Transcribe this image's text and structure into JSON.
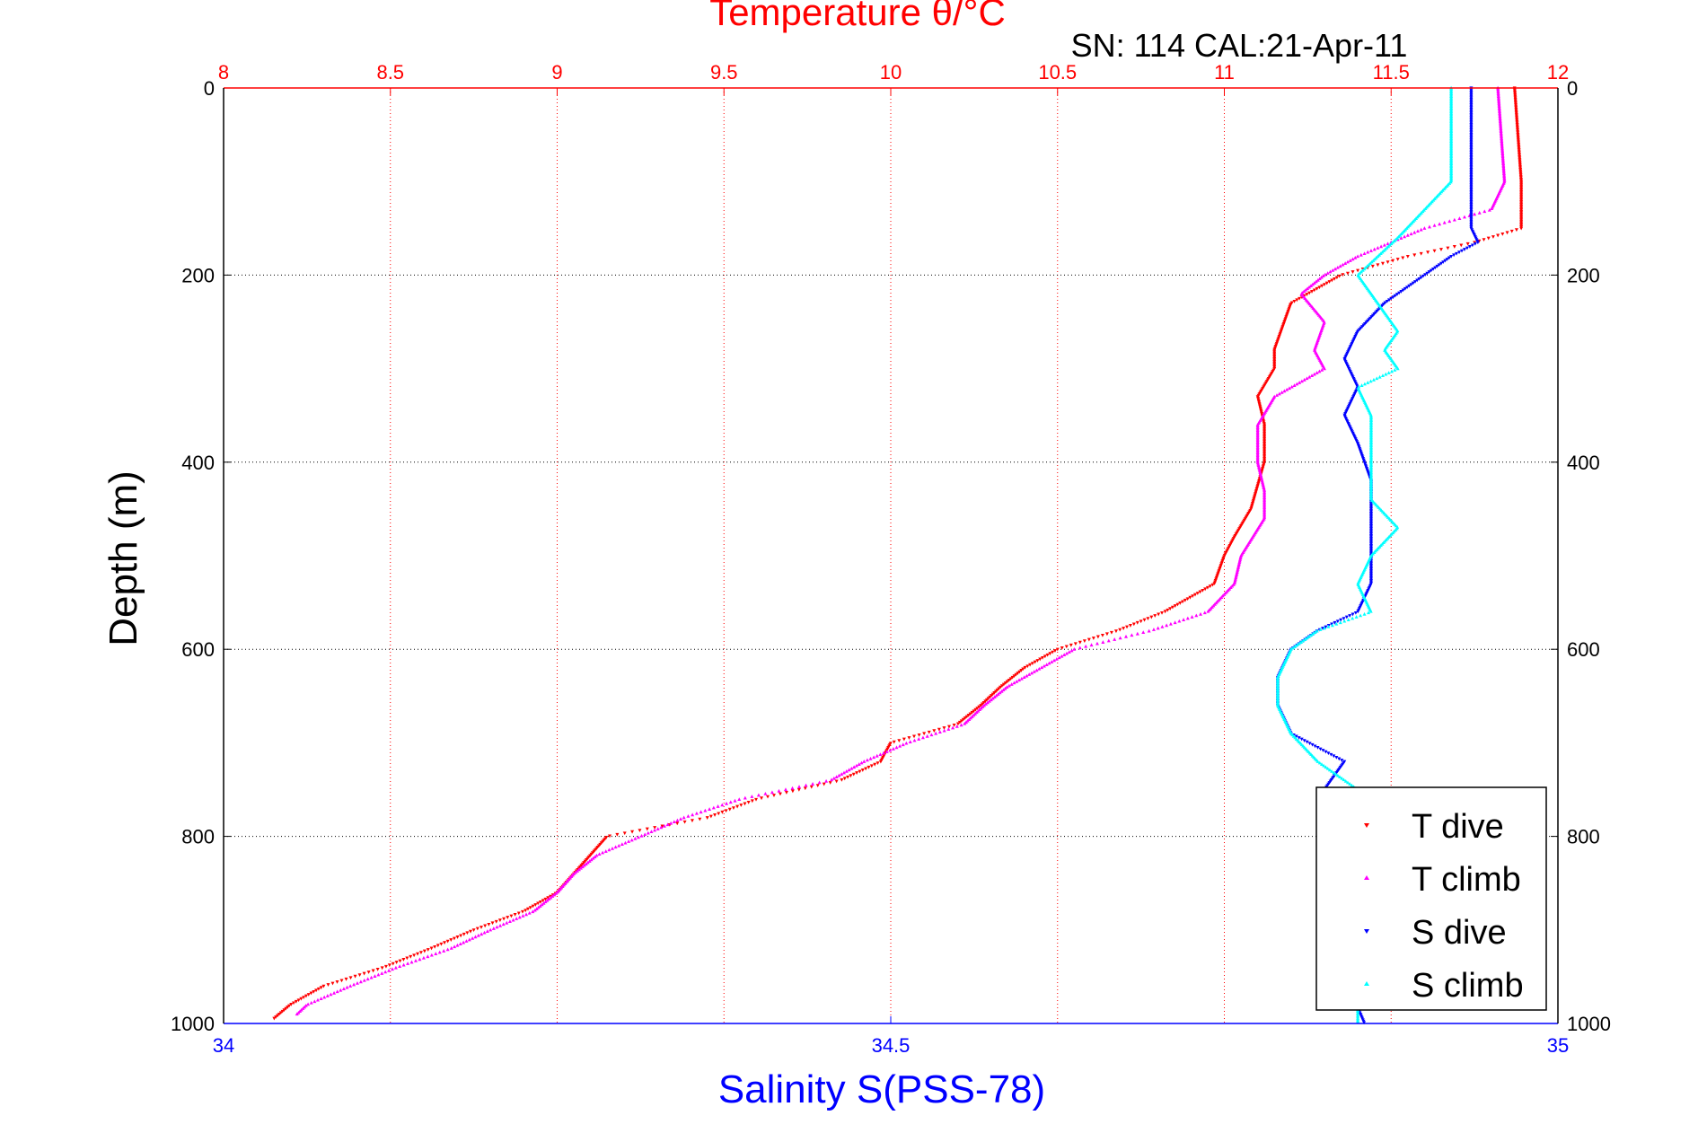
{
  "chart_data": {
    "type": "scatter",
    "title": "Temperature θ/°C",
    "subtitle": "SN: 114  CAL:21-Apr-11",
    "ylabel": "Depth (m)",
    "xlabel": "Salinity S(PSS-78)",
    "y_axis": {
      "range": [
        0,
        1000
      ],
      "inverted": true,
      "ticks": [
        0,
        200,
        400,
        600,
        800,
        1000
      ],
      "tick_labels": [
        "0",
        "200",
        "400",
        "600",
        "800",
        "1000"
      ],
      "grid": true
    },
    "temperature_axis": {
      "position": "top",
      "range": [
        8,
        12
      ],
      "ticks": [
        8,
        8.5,
        9,
        9.5,
        10,
        10.5,
        11,
        11.5,
        12
      ],
      "tick_labels": [
        "8",
        "8.5",
        "9",
        "9.5",
        "10",
        "10.5",
        "11",
        "11.5",
        "12"
      ],
      "color": "#ff0000",
      "grid": true
    },
    "salinity_axis": {
      "position": "bottom",
      "range": [
        34,
        35
      ],
      "ticks": [
        34,
        34.5,
        35
      ],
      "tick_labels": [
        "34",
        "34.5",
        "35"
      ],
      "color": "#0000ff"
    },
    "legend": {
      "placement": "bottom-right",
      "entries": [
        "T dive",
        "T climb",
        "S dive",
        "S climb"
      ]
    },
    "series": [
      {
        "name": "T dive",
        "axis": "temperature",
        "color": "#ff0000",
        "depth": [
          0,
          50,
          100,
          150,
          165,
          180,
          200,
          230,
          260,
          280,
          300,
          330,
          360,
          400,
          450,
          480,
          500,
          530,
          560,
          580,
          600,
          620,
          640,
          660,
          680,
          700,
          720,
          740,
          760,
          780,
          800,
          820,
          840,
          860,
          880,
          900,
          920,
          940,
          960,
          980,
          995
        ],
        "values": [
          11.87,
          11.88,
          11.89,
          11.89,
          11.75,
          11.55,
          11.35,
          11.2,
          11.17,
          11.15,
          11.15,
          11.1,
          11.12,
          11.12,
          11.08,
          11.03,
          11.0,
          10.97,
          10.82,
          10.68,
          10.5,
          10.4,
          10.33,
          10.27,
          10.2,
          10.0,
          9.97,
          9.85,
          9.6,
          9.45,
          9.15,
          9.1,
          9.05,
          9.0,
          8.9,
          8.75,
          8.62,
          8.48,
          8.3,
          8.2,
          8.15
        ]
      },
      {
        "name": "T climb",
        "axis": "temperature",
        "color": "#ff00ff",
        "depth": [
          0,
          50,
          100,
          130,
          150,
          180,
          200,
          220,
          250,
          280,
          300,
          330,
          360,
          400,
          430,
          460,
          500,
          530,
          560,
          580,
          600,
          620,
          640,
          660,
          680,
          700,
          720,
          740,
          760,
          780,
          800,
          820,
          840,
          860,
          880,
          900,
          920,
          940,
          960,
          980,
          990
        ],
        "values": [
          11.82,
          11.83,
          11.84,
          11.8,
          11.6,
          11.4,
          11.3,
          11.23,
          11.3,
          11.27,
          11.3,
          11.15,
          11.1,
          11.1,
          11.12,
          11.12,
          11.05,
          11.03,
          10.95,
          10.78,
          10.55,
          10.45,
          10.35,
          10.28,
          10.22,
          10.05,
          9.92,
          9.82,
          9.55,
          9.38,
          9.25,
          9.12,
          9.05,
          9.0,
          8.93,
          8.8,
          8.68,
          8.52,
          8.38,
          8.25,
          8.22
        ]
      },
      {
        "name": "S dive",
        "axis": "salinity",
        "color": "#0000ff",
        "depth": [
          0,
          50,
          100,
          150,
          165,
          180,
          200,
          230,
          260,
          290,
          320,
          350,
          380,
          420,
          460,
          500,
          530,
          560,
          580,
          600,
          630,
          660,
          690,
          720,
          740,
          760,
          800,
          850,
          900,
          950,
          1000
        ],
        "values": [
          34.935,
          34.935,
          34.935,
          34.935,
          34.94,
          34.92,
          34.9,
          34.87,
          34.85,
          34.84,
          34.85,
          34.84,
          34.85,
          34.86,
          34.86,
          34.86,
          34.86,
          34.85,
          34.82,
          34.8,
          34.79,
          34.79,
          34.8,
          34.84,
          34.83,
          34.82,
          34.83,
          34.84,
          34.84,
          34.84,
          34.855
        ]
      },
      {
        "name": "S climb",
        "axis": "salinity",
        "color": "#00ffff",
        "depth": [
          0,
          50,
          100,
          130,
          160,
          200,
          240,
          260,
          280,
          300,
          320,
          350,
          400,
          440,
          470,
          500,
          530,
          560,
          580,
          600,
          630,
          660,
          690,
          720,
          750,
          800,
          850,
          900,
          950,
          1000
        ],
        "values": [
          34.92,
          34.92,
          34.92,
          34.9,
          34.88,
          34.85,
          34.87,
          34.88,
          34.87,
          34.88,
          34.85,
          34.86,
          34.86,
          34.86,
          34.88,
          34.86,
          34.85,
          34.86,
          34.82,
          34.8,
          34.79,
          34.79,
          34.8,
          34.82,
          34.85,
          34.85,
          34.85,
          34.85,
          34.85,
          34.85
        ]
      }
    ]
  }
}
